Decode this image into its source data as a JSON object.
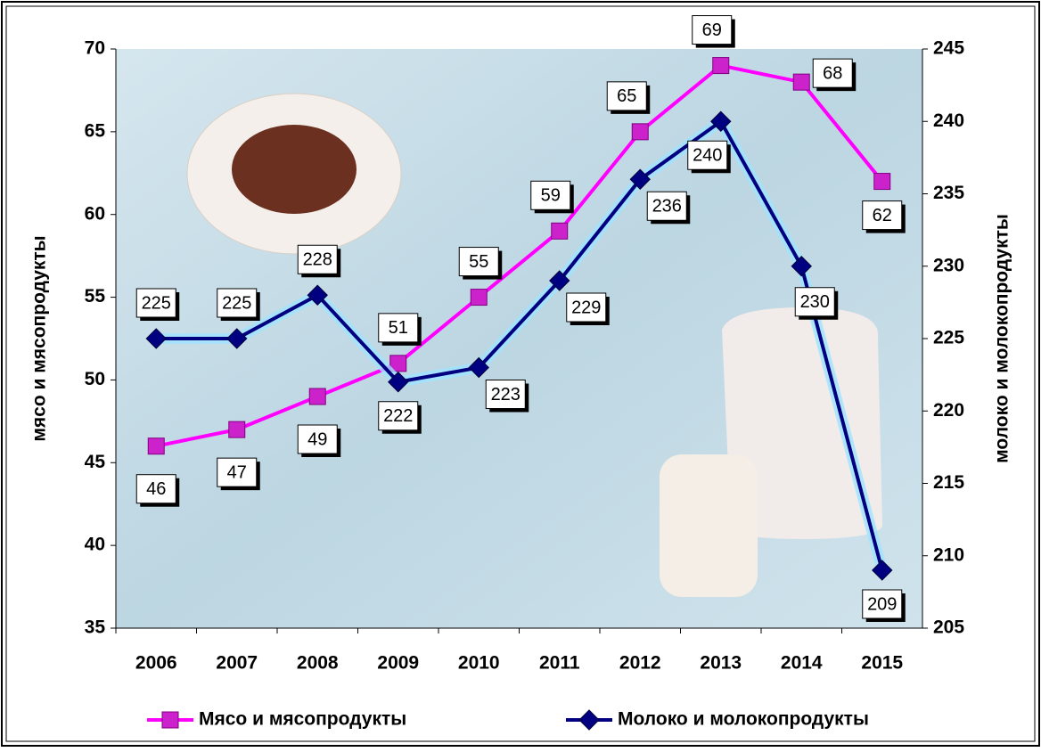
{
  "chart_data": {
    "type": "line",
    "categories": [
      "2006",
      "2007",
      "2008",
      "2009",
      "2010",
      "2011",
      "2012",
      "2013",
      "2014",
      "2015"
    ],
    "series": [
      {
        "name": "Мясо и мясопродукты",
        "color": "#ff00ff",
        "values": [
          46,
          47,
          49,
          51,
          55,
          59,
          65,
          69,
          68,
          62
        ]
      },
      {
        "name": "Молоко и молокопродукты",
        "color": "#000080",
        "axis": "y2",
        "values": [
          225,
          225,
          228,
          222,
          223,
          229,
          236,
          240,
          230,
          209
        ]
      }
    ],
    "ylabel": "мясо и мясопродукты",
    "y2label": "молоко и молокопродукты",
    "ylim": [
      35,
      70
    ],
    "yticks": [
      35,
      40,
      45,
      50,
      55,
      60,
      65,
      70
    ],
    "y2lim": [
      205,
      245
    ],
    "y2ticks": [
      205,
      210,
      215,
      220,
      225,
      230,
      235,
      240,
      245
    ]
  }
}
